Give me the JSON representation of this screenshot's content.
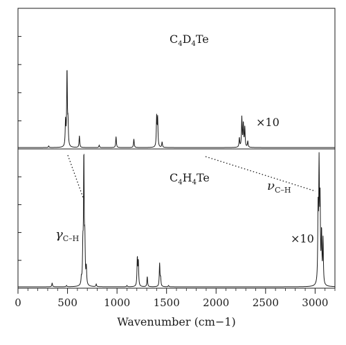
{
  "chart_data": {
    "type": "line",
    "layout": "two stacked panels sharing the x axis",
    "xlabel": "Wavenumber (cm−1)",
    "xlim": [
      0,
      3200
    ],
    "xticks": [
      0,
      500,
      1000,
      1500,
      2000,
      2500,
      3000
    ],
    "grid": false,
    "panels": [
      {
        "position": "top",
        "label": {
          "main": "C",
          "s1": "4",
          "m2": "D",
          "s2": "4",
          "m3": "Te"
        },
        "multiplier": "×10",
        "multiplier_region_cm": [
          2200,
          2400
        ],
        "peaks": [
          {
            "x": 310,
            "y": 0.02
          },
          {
            "x": 480,
            "y": 0.32
          },
          {
            "x": 495,
            "y": 0.98
          },
          {
            "x": 505,
            "y": 0.28
          },
          {
            "x": 620,
            "y": 0.15
          },
          {
            "x": 820,
            "y": 0.03
          },
          {
            "x": 990,
            "y": 0.14
          },
          {
            "x": 1170,
            "y": 0.11
          },
          {
            "x": 1400,
            "y": 0.38
          },
          {
            "x": 1410,
            "y": 0.36
          },
          {
            "x": 1455,
            "y": 0.07
          },
          {
            "x": 2235,
            "y": 0.12
          },
          {
            "x": 2260,
            "y": 0.38
          },
          {
            "x": 2275,
            "y": 0.3
          },
          {
            "x": 2290,
            "y": 0.25
          },
          {
            "x": 2320,
            "y": 0.08
          }
        ]
      },
      {
        "position": "bottom",
        "label": {
          "main": "C",
          "s1": "4",
          "m2": "H",
          "s2": "4",
          "m3": "Te"
        },
        "multiplier": "×10",
        "multiplier_region_cm": [
          2950,
          3150
        ],
        "annotations": {
          "gamma": {
            "sym": "γ",
            "sub": "C–H"
          },
          "nu": {
            "sym": "ν",
            "sub": "C–H"
          }
        },
        "peaks": [
          {
            "x": 345,
            "y": 0.03
          },
          {
            "x": 490,
            "y": 0.01
          },
          {
            "x": 640,
            "y": 0.05
          },
          {
            "x": 655,
            "y": 0.27
          },
          {
            "x": 665,
            "y": 1.0
          },
          {
            "x": 675,
            "y": 0.32
          },
          {
            "x": 690,
            "y": 0.13
          },
          {
            "x": 790,
            "y": 0.02
          },
          {
            "x": 1100,
            "y": 0.01
          },
          {
            "x": 1205,
            "y": 0.22
          },
          {
            "x": 1215,
            "y": 0.19
          },
          {
            "x": 1305,
            "y": 0.08
          },
          {
            "x": 1430,
            "y": 0.18
          },
          {
            "x": 1440,
            "y": 0.06
          },
          {
            "x": 1520,
            "y": 0.01
          },
          {
            "x": 3030,
            "y": 0.55
          },
          {
            "x": 3040,
            "y": 0.88
          },
          {
            "x": 3050,
            "y": 0.6
          },
          {
            "x": 3065,
            "y": 0.39
          },
          {
            "x": 3080,
            "y": 0.35
          }
        ]
      }
    ]
  }
}
